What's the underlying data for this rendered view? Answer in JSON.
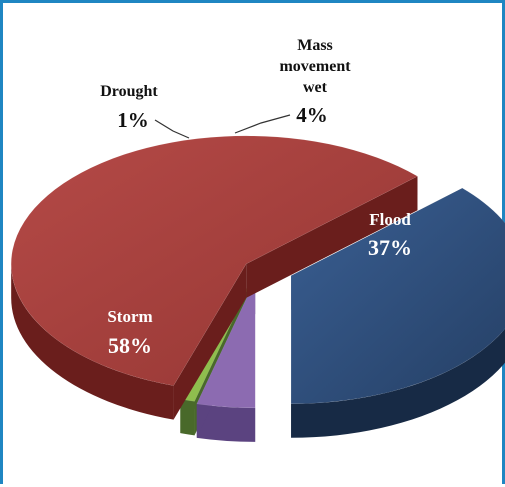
{
  "chart_data": {
    "type": "pie",
    "style": "3d-exploded",
    "title": "",
    "legend": "none",
    "slices": [
      {
        "name": "Flood",
        "value": 37,
        "label_value": "37%",
        "color": "#2e4d7a"
      },
      {
        "name": "Storm",
        "value": 58,
        "label_value": "58%",
        "color": "#a03f3d"
      },
      {
        "name": "Drought",
        "value": 1,
        "label_value": "1%",
        "color": "#8fbe4e"
      },
      {
        "name": "Mass movement wet",
        "name_lines": [
          "Mass",
          "movement",
          "wet"
        ],
        "value": 4,
        "label_value": "4%",
        "color": "#8c6bb1"
      }
    ]
  }
}
